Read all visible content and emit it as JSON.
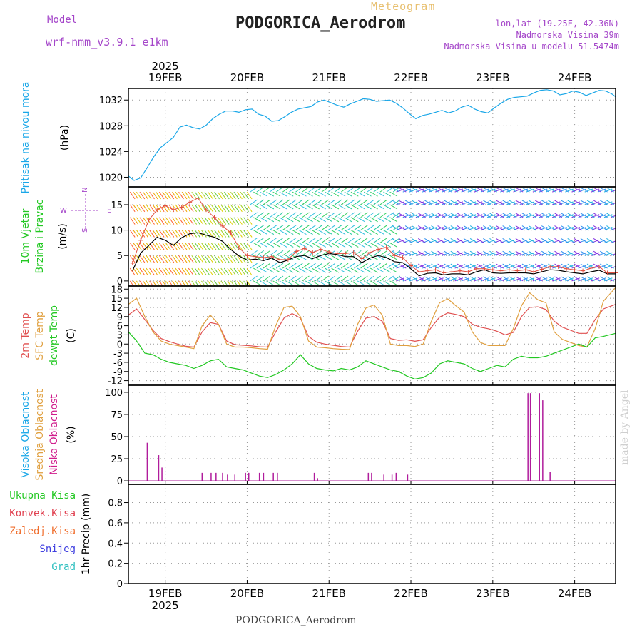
{
  "header": {
    "model_label": "Model",
    "model_name": "wrf-nmm_v3.9.1 e1km",
    "meteogram_label": "Meteogram",
    "title": "PODGORICA_Aerodrom",
    "lonlat": "lon,lat (19.25E, 42.36N)",
    "altitude": "Nadmorska Visina 39m",
    "altitude_model": "Nadmorska Visina u modelu 51.5474m"
  },
  "footer": {
    "title": "PODGORICA_Aerodrom"
  },
  "watermark": "made by Angel",
  "colors": {
    "pressure": "#1aa7e8",
    "wind_speed": "#000000",
    "gust": "#e05040",
    "temp2m": "#e05050",
    "sfc": "#e0a040",
    "dewpoint": "#22c822",
    "cloud": "#b01c9c"
  },
  "chart_data": {
    "type": "line",
    "time_axis": {
      "year": "2025",
      "day_labels": [
        "19FEB",
        "20FEB",
        "21FEB",
        "22FEB",
        "23FEB",
        "24FEB"
      ],
      "day_positions": [
        1,
        2,
        3,
        4,
        5,
        6
      ],
      "range_days": [
        0.55,
        6.5
      ]
    },
    "panels": [
      {
        "id": "pressure",
        "ylabel_lines": [
          "Pritisak na nivou mora"
        ],
        "unit": "(hPa)",
        "ticks": [
          1020,
          1024,
          1028,
          1032
        ],
        "ylim": [
          1018.5,
          1033.8
        ],
        "series": [
          {
            "x": [
              0.55,
              0.62,
              0.7,
              0.78,
              0.86,
              0.94,
              1.02,
              1.1,
              1.18,
              1.26,
              1.34,
              1.42,
              1.5,
              1.58,
              1.66,
              1.74,
              1.82,
              1.9,
              1.98,
              2.06,
              2.14,
              2.22,
              2.3,
              2.38,
              2.46,
              2.54,
              2.62,
              2.7,
              2.78,
              2.86,
              2.94,
              3.02,
              3.1,
              3.18,
              3.26,
              3.34,
              3.42,
              3.5,
              3.58,
              3.66,
              3.74,
              3.82,
              3.9,
              3.98,
              4.06,
              4.14,
              4.22,
              4.3,
              4.38,
              4.46,
              4.54,
              4.62,
              4.7,
              4.78,
              4.86,
              4.94,
              5.02,
              5.1,
              5.18,
              5.26,
              5.34,
              5.42,
              5.5,
              5.58,
              5.66,
              5.74,
              5.82,
              5.9,
              5.98,
              6.06,
              6.14,
              6.22,
              6.3,
              6.38,
              6.46,
              6.5
            ],
            "values": [
              1020.2,
              1019.5,
              1019.9,
              1021.5,
              1023.2,
              1024.6,
              1025.4,
              1026.2,
              1027.8,
              1028.1,
              1027.7,
              1027.5,
              1028.1,
              1029.1,
              1029.8,
              1030.3,
              1030.3,
              1030.1,
              1030.5,
              1030.6,
              1029.8,
              1029.5,
              1028.7,
              1028.8,
              1029.4,
              1030.1,
              1030.6,
              1030.8,
              1031.0,
              1031.7,
              1032.0,
              1031.6,
              1031.2,
              1030.9,
              1031.4,
              1031.8,
              1032.2,
              1032.1,
              1031.8,
              1031.9,
              1032.0,
              1031.5,
              1030.8,
              1029.9,
              1029.1,
              1029.6,
              1029.8,
              1030.1,
              1030.4,
              1030.0,
              1030.3,
              1030.9,
              1031.2,
              1030.6,
              1030.2,
              1030.0,
              1030.8,
              1031.5,
              1032.1,
              1032.4,
              1032.5,
              1032.6,
              1033.1,
              1033.5,
              1033.6,
              1033.4,
              1032.8,
              1033.0,
              1033.4,
              1033.2,
              1032.7,
              1033.1,
              1033.5,
              1033.4,
              1032.9,
              1032.5
            ]
          }
        ]
      },
      {
        "id": "wind",
        "ylabel_lines": [
          "10m Vjetar",
          "Brzina i Pravac"
        ],
        "unit": "(m/s)",
        "compass_n": "N",
        "compass_s": "S",
        "compass_w": "W",
        "compass_e": "E",
        "ticks": [
          0,
          5,
          10,
          15
        ],
        "ylim": [
          -1,
          18.5
        ],
        "series": [
          {
            "x": [
              0.6,
              0.7,
              0.8,
              0.9,
              1.0,
              1.1,
              1.2,
              1.3,
              1.4,
              1.5,
              1.6,
              1.7,
              1.8,
              1.9,
              2.0,
              2.1,
              2.2,
              2.3,
              2.4,
              2.5,
              2.6,
              2.7,
              2.8,
              2.9,
              3.0,
              3.1,
              3.2,
              3.3,
              3.4,
              3.5,
              3.6,
              3.7,
              3.8,
              3.9,
              4.0,
              4.1,
              4.2,
              4.3,
              4.4,
              4.5,
              4.6,
              4.7,
              4.8,
              4.9,
              5.0,
              5.1,
              5.2,
              5.3,
              5.4,
              5.5,
              5.6,
              5.7,
              5.8,
              5.9,
              6.0,
              6.1,
              6.2,
              6.3,
              6.4,
              6.5
            ],
            "values": [
              2.0,
              5.5,
              7.0,
              8.6,
              8.0,
              7.0,
              8.5,
              9.3,
              9.5,
              9.0,
              8.6,
              7.8,
              6.2,
              4.9,
              4.1,
              4.3,
              4.0,
              4.5,
              3.6,
              4.1,
              4.8,
              5.0,
              4.4,
              5.0,
              5.4,
              5.2,
              4.8,
              4.8,
              3.6,
              4.5,
              5.0,
              4.6,
              3.8,
              3.6,
              2.4,
              1.0,
              1.5,
              1.6,
              1.2,
              1.4,
              1.4,
              1.2,
              1.8,
              2.2,
              1.6,
              1.5,
              1.6,
              1.6,
              1.6,
              1.4,
              1.8,
              2.2,
              2.1,
              1.8,
              1.6,
              1.4,
              1.8,
              2.1,
              1.4,
              1.4
            ]
          },
          {
            "x": [
              0.6,
              0.7,
              0.8,
              0.9,
              1.0,
              1.1,
              1.2,
              1.3,
              1.4,
              1.5,
              1.6,
              1.7,
              1.8,
              1.9,
              2.0,
              2.1,
              2.2,
              2.3,
              2.4,
              2.5,
              2.6,
              2.7,
              2.8,
              2.9,
              3.0,
              3.1,
              3.2,
              3.3,
              3.4,
              3.5,
              3.6,
              3.7,
              3.8,
              3.9,
              4.0,
              4.1,
              4.2,
              4.3,
              4.4,
              4.5,
              4.6,
              4.7,
              4.8,
              4.9,
              5.0,
              5.1,
              5.2,
              5.3,
              5.4,
              5.5,
              5.6,
              5.7,
              5.8,
              5.9,
              6.0,
              6.1,
              6.2,
              6.3,
              6.4,
              6.5
            ],
            "values": [
              3.5,
              8.0,
              12.0,
              14.0,
              14.8,
              14.0,
              14.5,
              15.5,
              16.3,
              14.0,
              12.5,
              10.8,
              9.5,
              6.5,
              5.0,
              4.8,
              4.6,
              4.8,
              4.2,
              4.2,
              5.8,
              6.4,
              5.6,
              6.2,
              5.7,
              5.4,
              5.4,
              5.6,
              4.4,
              5.6,
              6.2,
              6.6,
              5.0,
              4.6,
              3.0,
              1.8,
              2.0,
              2.2,
              1.6,
              1.8,
              2.0,
              1.8,
              2.4,
              2.4,
              2.2,
              2.0,
              2.2,
              2.0,
              2.2,
              1.8,
              2.3,
              2.8,
              2.8,
              2.4,
              2.2,
              2.0,
              2.5,
              2.8,
              1.6,
              1.6
            ]
          }
        ]
      },
      {
        "id": "temperature",
        "ylabel_lines": [
          "2m Temp",
          "SFC Temp",
          "dewpt Temp"
        ],
        "unit": "(C)",
        "ticks": [
          -12,
          -9,
          -6,
          -3,
          0,
          3,
          6,
          9,
          12,
          15,
          18
        ],
        "ylim": [
          -13.5,
          19
        ],
        "series": [
          {
            "x": [
              0.55,
              0.65,
              0.75,
              0.85,
              0.95,
              1.05,
              1.15,
              1.25,
              1.35,
              1.45,
              1.55,
              1.65,
              1.75,
              1.85,
              1.95,
              2.05,
              2.15,
              2.25,
              2.35,
              2.45,
              2.55,
              2.65,
              2.75,
              2.85,
              2.95,
              3.05,
              3.15,
              3.25,
              3.35,
              3.45,
              3.55,
              3.65,
              3.75,
              3.85,
              3.95,
              4.05,
              4.15,
              4.25,
              4.35,
              4.45,
              4.55,
              4.65,
              4.75,
              4.85,
              4.95,
              5.05,
              5.15,
              5.25,
              5.35,
              5.45,
              5.55,
              5.65,
              5.75,
              5.85,
              5.95,
              6.05,
              6.15,
              6.25,
              6.35,
              6.5
            ],
            "values": [
              9.5,
              11.5,
              8.0,
              4.5,
              1.8,
              0.8,
              0.0,
              -0.7,
              -1.0,
              4.0,
              7.0,
              6.5,
              1.0,
              -0.2,
              -0.4,
              -0.6,
              -0.9,
              -1.0,
              4.0,
              8.5,
              10.0,
              8.5,
              2.5,
              0.6,
              0.0,
              -0.4,
              -0.8,
              -1.0,
              4.2,
              8.5,
              9.0,
              7.5,
              1.8,
              1.2,
              1.4,
              0.9,
              1.4,
              5.5,
              8.8,
              10.2,
              9.7,
              9.0,
              6.5,
              5.5,
              5.0,
              4.2,
              3.0,
              3.8,
              9.0,
              12.0,
              12.2,
              11.3,
              7.5,
              5.5,
              4.5,
              3.5,
              3.5,
              8.0,
              11.5,
              13.0
            ]
          },
          {
            "x": [
              0.55,
              0.65,
              0.75,
              0.85,
              0.95,
              1.05,
              1.15,
              1.25,
              1.35,
              1.45,
              1.55,
              1.65,
              1.75,
              1.85,
              1.95,
              2.05,
              2.15,
              2.25,
              2.35,
              2.45,
              2.55,
              2.65,
              2.75,
              2.85,
              2.95,
              3.05,
              3.15,
              3.25,
              3.35,
              3.45,
              3.55,
              3.65,
              3.75,
              3.85,
              3.95,
              4.05,
              4.15,
              4.25,
              4.35,
              4.45,
              4.55,
              4.65,
              4.75,
              4.85,
              4.95,
              5.05,
              5.15,
              5.25,
              5.35,
              5.45,
              5.55,
              5.65,
              5.75,
              5.85,
              5.95,
              6.05,
              6.15,
              6.25,
              6.35,
              6.5
            ],
            "values": [
              13.0,
              15.0,
              9.0,
              4.0,
              1.0,
              0.0,
              -0.5,
              -1.0,
              -1.5,
              6.0,
              9.5,
              6.5,
              0.0,
              -1.0,
              -1.0,
              -1.2,
              -1.5,
              -1.7,
              6.0,
              12.0,
              12.4,
              9.0,
              1.0,
              -1.0,
              -1.2,
              -1.5,
              -1.7,
              -1.8,
              6.5,
              11.8,
              12.8,
              9.5,
              0.0,
              -0.5,
              -0.5,
              -0.8,
              0.0,
              7.5,
              13.5,
              14.8,
              12.5,
              10.5,
              4.0,
              0.5,
              -0.5,
              -0.5,
              -0.5,
              5.0,
              12.5,
              16.8,
              14.5,
              13.5,
              4.0,
              1.5,
              0.5,
              -0.5,
              -1.0,
              5.0,
              14.0,
              18.5
            ]
          },
          {
            "x": [
              0.55,
              0.65,
              0.75,
              0.85,
              0.95,
              1.05,
              1.15,
              1.25,
              1.35,
              1.45,
              1.55,
              1.65,
              1.75,
              1.85,
              1.95,
              2.05,
              2.15,
              2.25,
              2.35,
              2.45,
              2.55,
              2.65,
              2.75,
              2.85,
              2.95,
              3.05,
              3.15,
              3.25,
              3.35,
              3.45,
              3.55,
              3.65,
              3.75,
              3.85,
              3.95,
              4.05,
              4.15,
              4.25,
              4.35,
              4.45,
              4.55,
              4.65,
              4.75,
              4.85,
              4.95,
              5.05,
              5.15,
              5.25,
              5.35,
              5.45,
              5.55,
              5.65,
              5.75,
              5.85,
              5.95,
              6.05,
              6.15,
              6.25,
              6.35,
              6.5
            ],
            "values": [
              4.0,
              1.0,
              -3.0,
              -3.5,
              -5.0,
              -6.0,
              -6.5,
              -7.0,
              -8.0,
              -7.0,
              -5.5,
              -5.0,
              -7.5,
              -8.0,
              -8.5,
              -9.5,
              -10.5,
              -11.0,
              -10.0,
              -8.5,
              -6.5,
              -3.5,
              -6.5,
              -8.0,
              -8.5,
              -8.8,
              -8.0,
              -8.5,
              -7.5,
              -5.5,
              -6.5,
              -7.5,
              -8.5,
              -9.0,
              -10.5,
              -11.5,
              -11.0,
              -9.5,
              -6.5,
              -5.5,
              -6.0,
              -6.5,
              -8.0,
              -9.0,
              -8.0,
              -7.0,
              -7.5,
              -5.0,
              -4.0,
              -4.5,
              -4.5,
              -4.0,
              -3.0,
              -2.0,
              -1.0,
              0.0,
              -1.0,
              2.0,
              2.5,
              3.5
            ]
          }
        ]
      },
      {
        "id": "clouds",
        "ylabel_lines": [
          "Visoka Oblacnost",
          "Srednja Oblacnost",
          "Niska Oblacnost"
        ],
        "unit": "(%)",
        "ticks": [
          0,
          25,
          50,
          75,
          100
        ],
        "ylim": [
          -4,
          108
        ],
        "bars": {
          "x": [
            0.78,
            0.92,
            0.96,
            1.45,
            1.56,
            1.62,
            1.7,
            1.76,
            1.85,
            1.98,
            2.02,
            2.15,
            2.2,
            2.32,
            2.37,
            2.82,
            2.86,
            3.48,
            3.52,
            3.67,
            3.77,
            3.82,
            3.96,
            5.43,
            5.46,
            5.57,
            5.61,
            5.7
          ],
          "values": [
            43,
            29,
            15,
            9,
            9,
            9,
            9,
            7,
            7,
            9,
            9,
            9,
            9,
            9,
            9,
            9,
            3,
            9,
            9,
            7,
            7,
            9,
            7,
            99,
            99,
            99,
            91,
            10
          ]
        }
      },
      {
        "id": "precip",
        "ylabel_lines": [
          "Ukupna Kisa",
          "Konvek.Kisa",
          "Zaledj.Kisa",
          "Snijeg",
          "Grad"
        ],
        "unit": "1hr Precip (mm)",
        "ticks": [
          0,
          0.2,
          0.4,
          0.6,
          0.8
        ],
        "tick_labels": [
          "0",
          "0.2",
          "0.4",
          "0.6",
          "0.8"
        ],
        "ylim": [
          0,
          0.98
        ],
        "values": []
      }
    ]
  }
}
